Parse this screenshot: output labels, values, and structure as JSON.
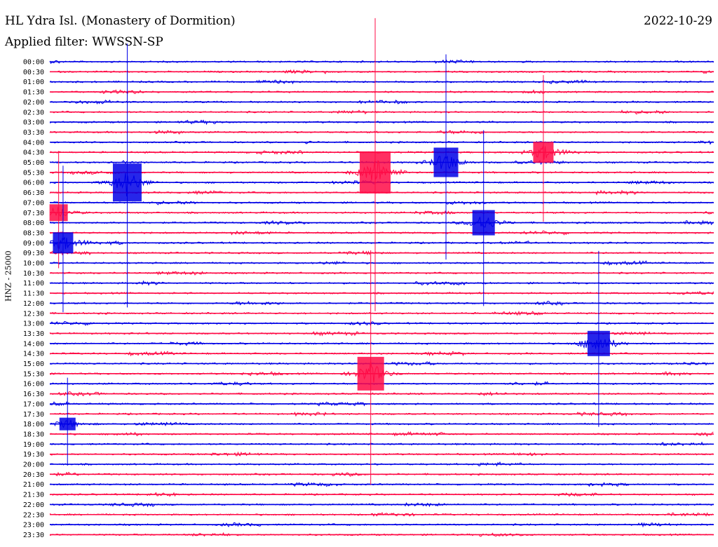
{
  "header": {
    "station": "HL Ydra Isl. (Monastery of Dormition)",
    "date": "2022-10-29",
    "filter": "Applied filter: WWSSN-SP",
    "channel_label": "HNZ - 25000"
  },
  "colors": {
    "trace_a": "#0000e6",
    "trace_b": "#ff0a46"
  },
  "chart_data": {
    "type": "line",
    "title": "HL Ydra Isl. (Monastery of Dormition)",
    "ylabel": "HNZ - 25000",
    "rows": [
      "00:00",
      "00:30",
      "01:00",
      "01:30",
      "02:00",
      "02:30",
      "03:00",
      "03:30",
      "04:00",
      "04:30",
      "05:00",
      "05:30",
      "06:00",
      "06:30",
      "07:00",
      "07:30",
      "08:00",
      "08:30",
      "09:00",
      "09:30",
      "10:00",
      "10:30",
      "11:00",
      "11:30",
      "12:00",
      "12:30",
      "13:00",
      "13:30",
      "14:00",
      "14:30",
      "15:00",
      "15:30",
      "16:00",
      "16:30",
      "17:00",
      "17:30",
      "18:00",
      "18:30",
      "19:00",
      "19:30",
      "20:00",
      "20:30",
      "21:00",
      "21:30",
      "22:00",
      "22:30",
      "23:00",
      "23:30"
    ],
    "events": [
      {
        "row": 12,
        "minute": 3.5,
        "amplitude": 9
      },
      {
        "row": 11,
        "minute": 14.7,
        "amplitude": 10
      },
      {
        "row": 10,
        "minute": 17.9,
        "amplitude": 7
      },
      {
        "row": 16,
        "minute": 19.6,
        "amplitude": 6
      },
      {
        "row": 9,
        "minute": 22.3,
        "amplitude": 5
      },
      {
        "row": 15,
        "minute": 0.4,
        "amplitude": 4
      },
      {
        "row": 18,
        "minute": 0.6,
        "amplitude": 5
      },
      {
        "row": 31,
        "minute": 14.5,
        "amplitude": 8
      },
      {
        "row": 28,
        "minute": 24.8,
        "amplitude": 6
      },
      {
        "row": 36,
        "minute": 0.8,
        "amplitude": 3
      }
    ]
  }
}
